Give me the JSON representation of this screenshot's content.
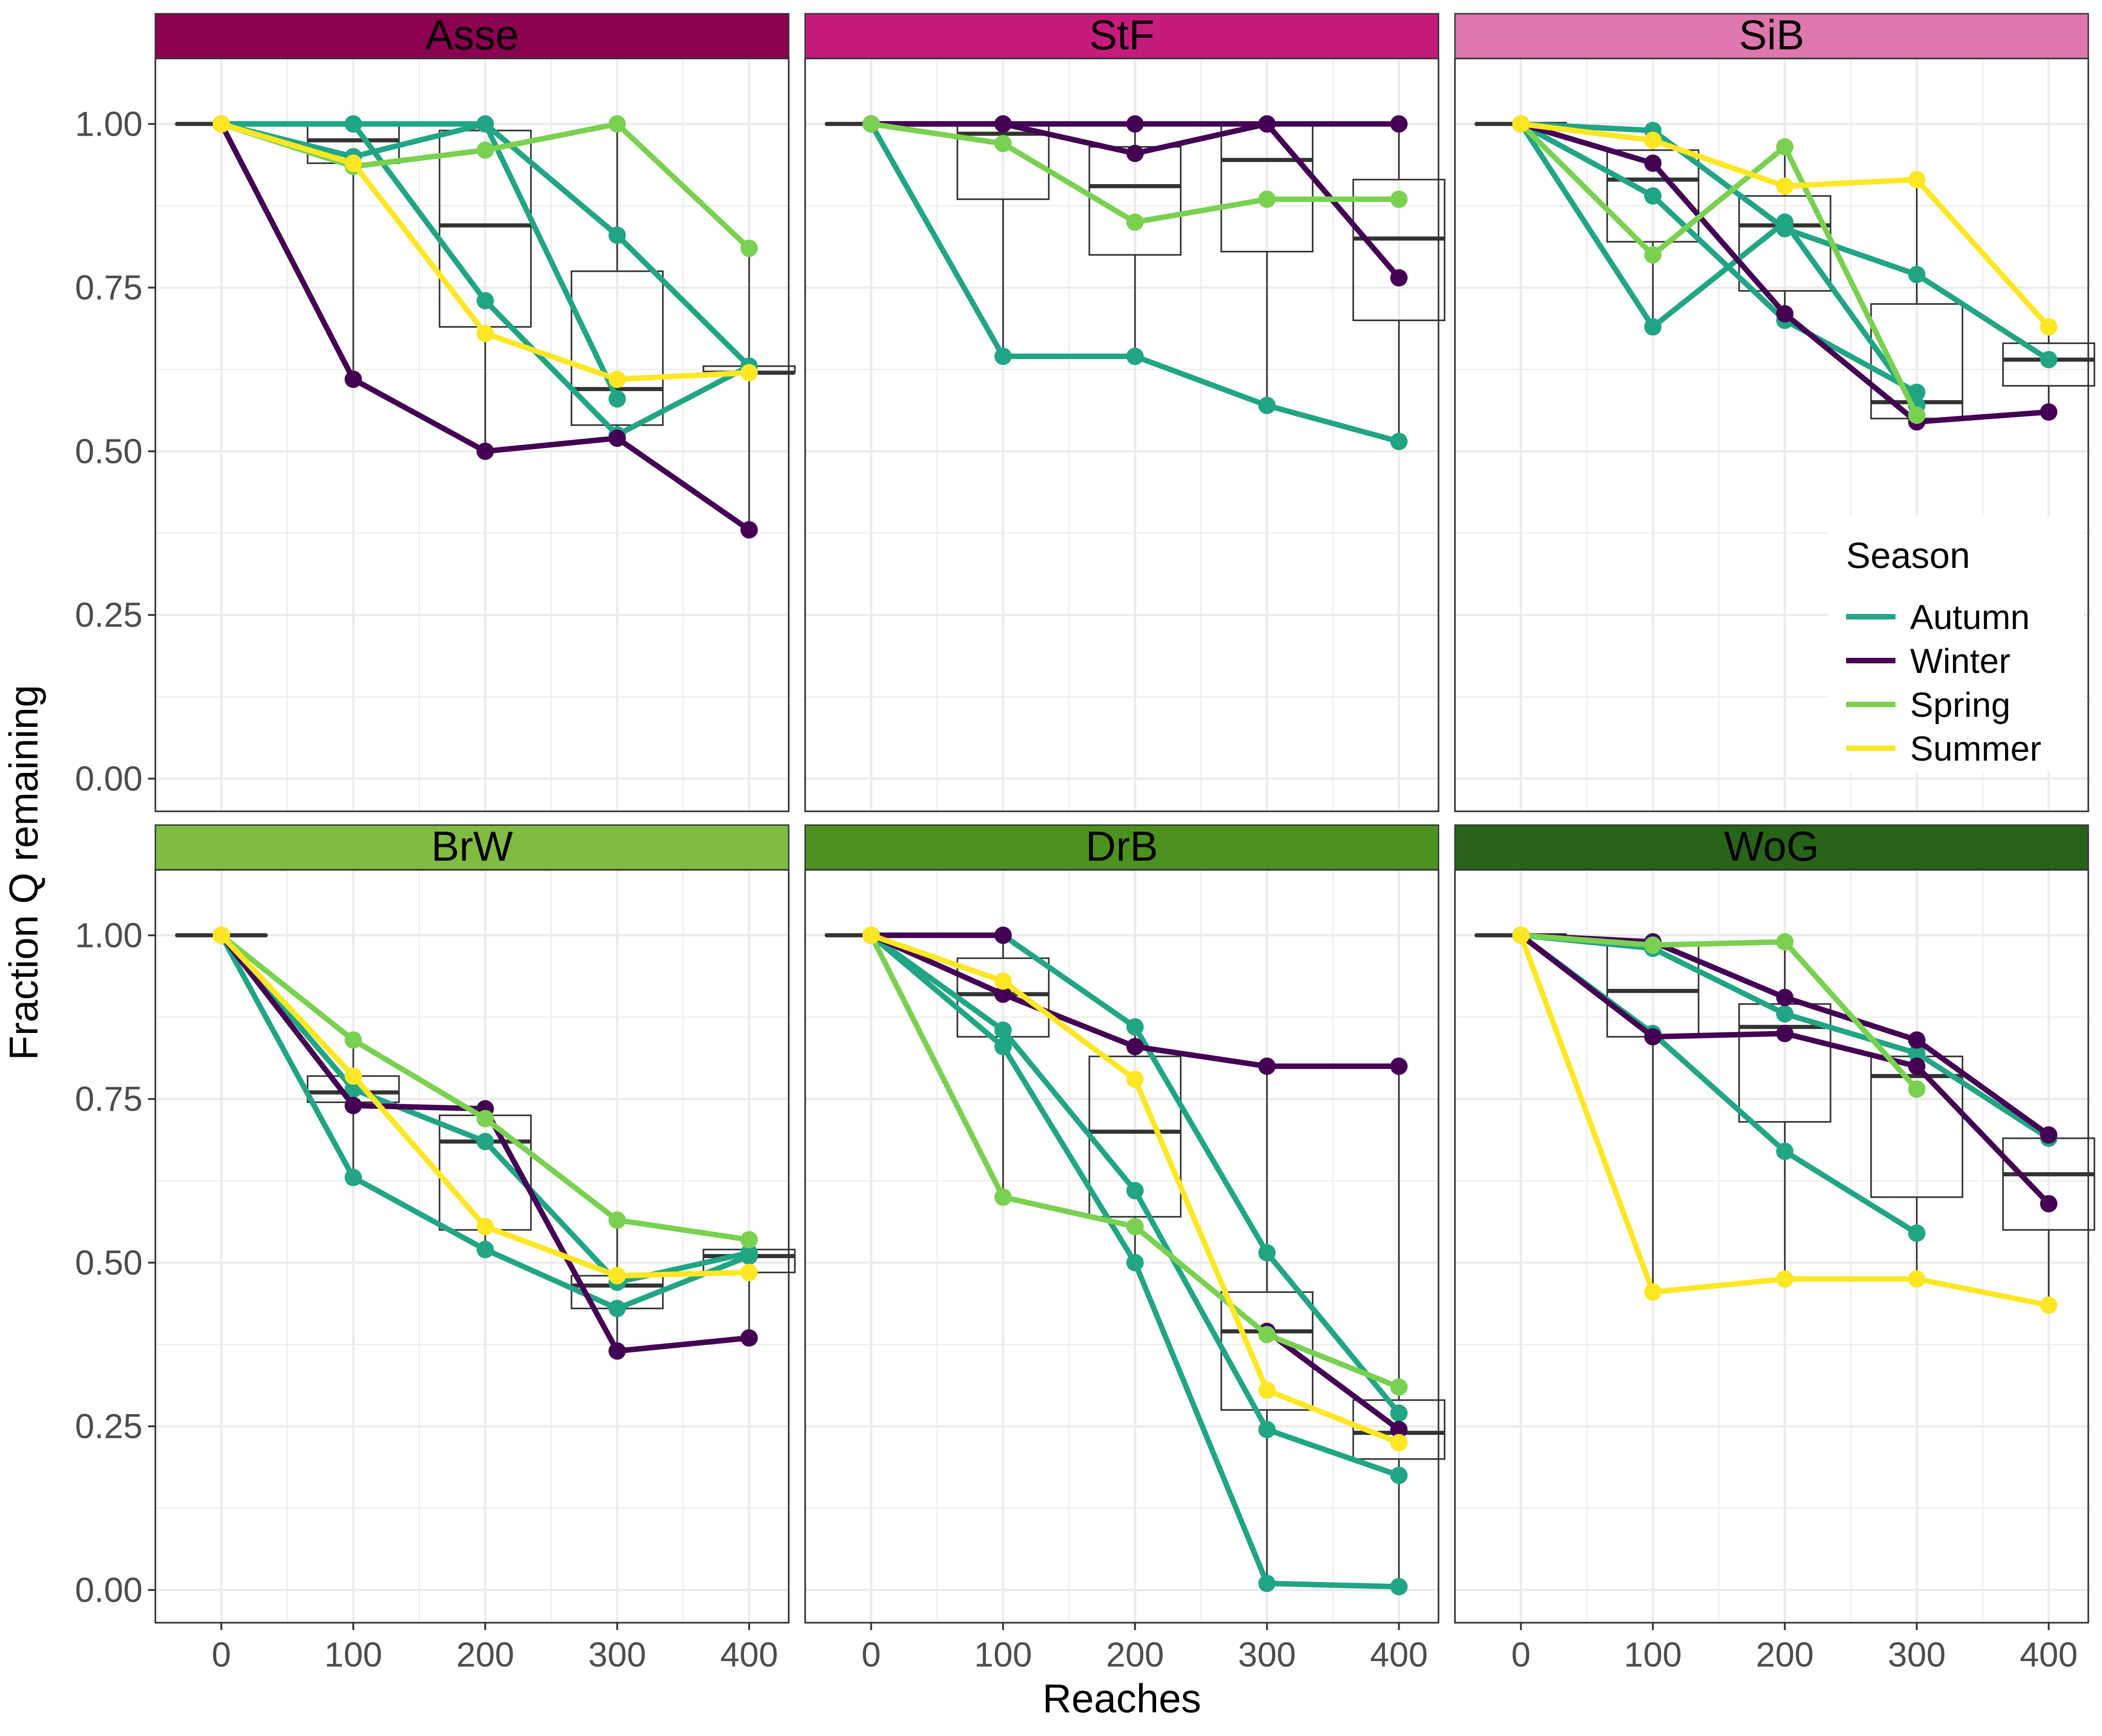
{
  "figure": {
    "ylabel": "Fraction Q remaining",
    "xlabel": "Reaches",
    "legend_title": "Season"
  },
  "colors": {
    "Autumn": "#21A585",
    "Winter": "#440154",
    "Spring": "#7AD151",
    "Summer": "#FDE725",
    "grid": "#EBEBEB",
    "box": "#333333"
  },
  "chart_data": {
    "type": "line",
    "layout": "faceted 2x3",
    "x_ticks": [
      0,
      100,
      200,
      300,
      400
    ],
    "y_ticks": [
      0.0,
      0.25,
      0.5,
      0.75,
      1.0
    ],
    "y_tick_labels": [
      "0.00",
      "0.25",
      "0.50",
      "0.75",
      "1.00"
    ],
    "xlim": [
      -50,
      430
    ],
    "ylim": [
      -0.05,
      1.1
    ],
    "legend": {
      "title": "Season",
      "placement": "inside-top-right-panel-3",
      "entries": [
        "Autumn",
        "Winter",
        "Spring",
        "Summer"
      ]
    },
    "panels": [
      {
        "title": "Asse",
        "strip_color": "#8B0051",
        "boxes": [
          {
            "x": 0,
            "q1": 1.0,
            "med": 1.0,
            "q3": 1.0,
            "lo": 1.0,
            "hi": 1.0
          },
          {
            "x": 100,
            "q1": 0.94,
            "med": 0.975,
            "q3": 1.0,
            "lo": 0.61,
            "hi": 1.0
          },
          {
            "x": 200,
            "q1": 0.69,
            "med": 0.845,
            "q3": 0.99,
            "lo": 0.5,
            "hi": 1.0
          },
          {
            "x": 300,
            "q1": 0.54,
            "med": 0.595,
            "q3": 0.775,
            "lo": 0.52,
            "hi": 1.0
          },
          {
            "x": 400,
            "q1": 0.62,
            "med": 0.62,
            "q3": 0.63,
            "lo": 0.38,
            "hi": 0.81
          }
        ],
        "series": [
          {
            "season": "Autumn",
            "values": [
              1.0,
              1.0,
              1.0,
              0.83,
              0.63
            ]
          },
          {
            "season": "Autumn",
            "values": [
              1.0,
              0.95,
              1.0,
              0.58,
              null
            ]
          },
          {
            "season": "Autumn",
            "values": [
              1.0,
              1.0,
              0.73,
              0.525,
              0.63
            ]
          },
          {
            "season": "Winter",
            "values": [
              1.0,
              0.61,
              0.5,
              0.52,
              0.38
            ]
          },
          {
            "season": "Spring",
            "values": [
              1.0,
              0.935,
              0.96,
              1.0,
              0.81
            ]
          },
          {
            "season": "Summer",
            "values": [
              1.0,
              0.94,
              0.68,
              0.61,
              0.62
            ]
          }
        ]
      },
      {
        "title": "StF",
        "strip_color": "#C51B7D",
        "boxes": [
          {
            "x": 0,
            "q1": 1.0,
            "med": 1.0,
            "q3": 1.0,
            "lo": 1.0,
            "hi": 1.0
          },
          {
            "x": 100,
            "q1": 0.885,
            "med": 0.985,
            "q3": 1.0,
            "lo": 0.645,
            "hi": 1.0
          },
          {
            "x": 200,
            "q1": 0.8,
            "med": 0.905,
            "q3": 0.965,
            "lo": 0.645,
            "hi": 1.0
          },
          {
            "x": 300,
            "q1": 0.805,
            "med": 0.945,
            "q3": 1.0,
            "lo": 0.57,
            "hi": 1.0
          },
          {
            "x": 400,
            "q1": 0.7,
            "med": 0.825,
            "q3": 0.915,
            "lo": 0.515,
            "hi": 1.0
          }
        ],
        "series": [
          {
            "season": "Autumn",
            "values": [
              1.0,
              0.645,
              0.645,
              0.57,
              0.515
            ]
          },
          {
            "season": "Winter",
            "values": [
              1.0,
              1.0,
              1.0,
              1.0,
              1.0
            ]
          },
          {
            "season": "Winter",
            "values": [
              1.0,
              1.0,
              0.955,
              1.0,
              0.765
            ]
          },
          {
            "season": "Spring",
            "values": [
              1.0,
              0.97,
              0.85,
              0.885,
              0.885
            ]
          }
        ]
      },
      {
        "title": "SiB",
        "strip_color": "#DE77AE",
        "boxes": [
          {
            "x": 0,
            "q1": 1.0,
            "med": 1.0,
            "q3": 1.0,
            "lo": 1.0,
            "hi": 1.0
          },
          {
            "x": 100,
            "q1": 0.82,
            "med": 0.915,
            "q3": 0.96,
            "lo": 0.69,
            "hi": 0.99
          },
          {
            "x": 200,
            "q1": 0.745,
            "med": 0.845,
            "q3": 0.89,
            "lo": 0.695,
            "hi": 0.965
          },
          {
            "x": 300,
            "q1": 0.55,
            "med": 0.575,
            "q3": 0.725,
            "lo": 0.545,
            "hi": 0.915
          },
          {
            "x": 400,
            "q1": 0.6,
            "med": 0.64,
            "q3": 0.665,
            "lo": 0.56,
            "hi": 0.69
          }
        ],
        "series": [
          {
            "season": "Autumn",
            "values": [
              1.0,
              0.99,
              0.84,
              0.77,
              0.64
            ]
          },
          {
            "season": "Autumn",
            "values": [
              1.0,
              0.89,
              0.7,
              0.59,
              null
            ]
          },
          {
            "season": "Autumn",
            "values": [
              1.0,
              0.69,
              0.85,
              0.57,
              null
            ]
          },
          {
            "season": "Winter",
            "values": [
              1.0,
              0.94,
              0.71,
              0.545,
              0.56
            ]
          },
          {
            "season": "Spring",
            "values": [
              1.0,
              0.8,
              0.965,
              0.555,
              null
            ]
          },
          {
            "season": "Summer",
            "values": [
              1.0,
              0.975,
              0.905,
              0.915,
              0.69
            ]
          }
        ]
      },
      {
        "title": "BrW",
        "strip_color": "#7FBC41",
        "boxes": [
          {
            "x": 0,
            "q1": 1.0,
            "med": 1.0,
            "q3": 1.0,
            "lo": 1.0,
            "hi": 1.0
          },
          {
            "x": 100,
            "q1": 0.745,
            "med": 0.76,
            "q3": 0.785,
            "lo": 0.63,
            "hi": 0.84
          },
          {
            "x": 200,
            "q1": 0.55,
            "med": 0.685,
            "q3": 0.725,
            "lo": 0.52,
            "hi": 0.735
          },
          {
            "x": 300,
            "q1": 0.43,
            "med": 0.465,
            "q3": 0.48,
            "lo": 0.365,
            "hi": 0.565
          },
          {
            "x": 400,
            "q1": 0.485,
            "med": 0.51,
            "q3": 0.52,
            "lo": 0.385,
            "hi": 0.535
          }
        ],
        "series": [
          {
            "season": "Autumn",
            "values": [
              1.0,
              0.63,
              0.52,
              0.43,
              0.51
            ]
          },
          {
            "season": "Autumn",
            "values": [
              1.0,
              0.765,
              0.685,
              0.47,
              0.515
            ]
          },
          {
            "season": "Winter",
            "values": [
              1.0,
              0.74,
              0.735,
              0.365,
              0.385
            ]
          },
          {
            "season": "Spring",
            "values": [
              1.0,
              0.84,
              0.72,
              0.565,
              0.535
            ]
          },
          {
            "season": "Summer",
            "values": [
              1.0,
              0.785,
              0.555,
              0.48,
              0.485
            ]
          }
        ]
      },
      {
        "title": "DrB",
        "strip_color": "#4D9221",
        "boxes": [
          {
            "x": 0,
            "q1": 1.0,
            "med": 1.0,
            "q3": 1.0,
            "lo": 1.0,
            "hi": 1.0
          },
          {
            "x": 100,
            "q1": 0.845,
            "med": 0.91,
            "q3": 0.965,
            "lo": 0.6,
            "hi": 1.0
          },
          {
            "x": 200,
            "q1": 0.57,
            "med": 0.7,
            "q3": 0.815,
            "lo": 0.5,
            "hi": 0.86
          },
          {
            "x": 300,
            "q1": 0.275,
            "med": 0.395,
            "q3": 0.455,
            "lo": 0.01,
            "hi": 0.8
          },
          {
            "x": 400,
            "q1": 0.2,
            "med": 0.24,
            "q3": 0.29,
            "lo": 0.005,
            "hi": 0.8
          }
        ],
        "series": [
          {
            "season": "Autumn",
            "values": [
              1.0,
              1.0,
              0.86,
              0.515,
              0.27
            ]
          },
          {
            "season": "Autumn",
            "values": [
              1.0,
              0.855,
              0.61,
              0.245,
              0.175
            ]
          },
          {
            "season": "Autumn",
            "values": [
              1.0,
              0.83,
              0.5,
              0.01,
              0.005
            ]
          },
          {
            "season": "Winter",
            "values": [
              1.0,
              0.91,
              0.83,
              0.8,
              0.8
            ]
          },
          {
            "season": "Winter",
            "values": [
              1.0,
              1.0,
              null,
              0.395,
              0.245
            ]
          },
          {
            "season": "Spring",
            "values": [
              1.0,
              0.6,
              0.555,
              0.39,
              0.31
            ]
          },
          {
            "season": "Summer",
            "values": [
              1.0,
              0.93,
              0.78,
              0.305,
              0.225
            ]
          }
        ]
      },
      {
        "title": "WoG",
        "strip_color": "#276419",
        "boxes": [
          {
            "x": 0,
            "q1": 1.0,
            "med": 1.0,
            "q3": 1.0,
            "lo": 1.0,
            "hi": 1.0
          },
          {
            "x": 100,
            "q1": 0.845,
            "med": 0.915,
            "q3": 0.985,
            "lo": 0.455,
            "hi": 0.99
          },
          {
            "x": 200,
            "q1": 0.715,
            "med": 0.86,
            "q3": 0.895,
            "lo": 0.475,
            "hi": 0.99
          },
          {
            "x": 300,
            "q1": 0.6,
            "med": 0.785,
            "q3": 0.815,
            "lo": 0.475,
            "hi": 0.84
          },
          {
            "x": 400,
            "q1": 0.55,
            "med": 0.635,
            "q3": 0.69,
            "lo": 0.435,
            "hi": 0.695
          }
        ],
        "series": [
          {
            "season": "Autumn",
            "values": [
              1.0,
              0.98,
              0.88,
              0.82,
              0.69
            ]
          },
          {
            "season": "Autumn",
            "values": [
              1.0,
              0.85,
              0.67,
              0.545,
              null
            ]
          },
          {
            "season": "Winter",
            "values": [
              1.0,
              0.845,
              0.85,
              0.8,
              0.59
            ]
          },
          {
            "season": "Winter",
            "values": [
              1.0,
              0.99,
              0.905,
              0.84,
              0.695
            ]
          },
          {
            "season": "Spring",
            "values": [
              1.0,
              0.985,
              0.99,
              0.765,
              null
            ]
          },
          {
            "season": "Summer",
            "values": [
              1.0,
              0.455,
              0.475,
              0.475,
              0.435
            ]
          }
        ]
      }
    ]
  }
}
